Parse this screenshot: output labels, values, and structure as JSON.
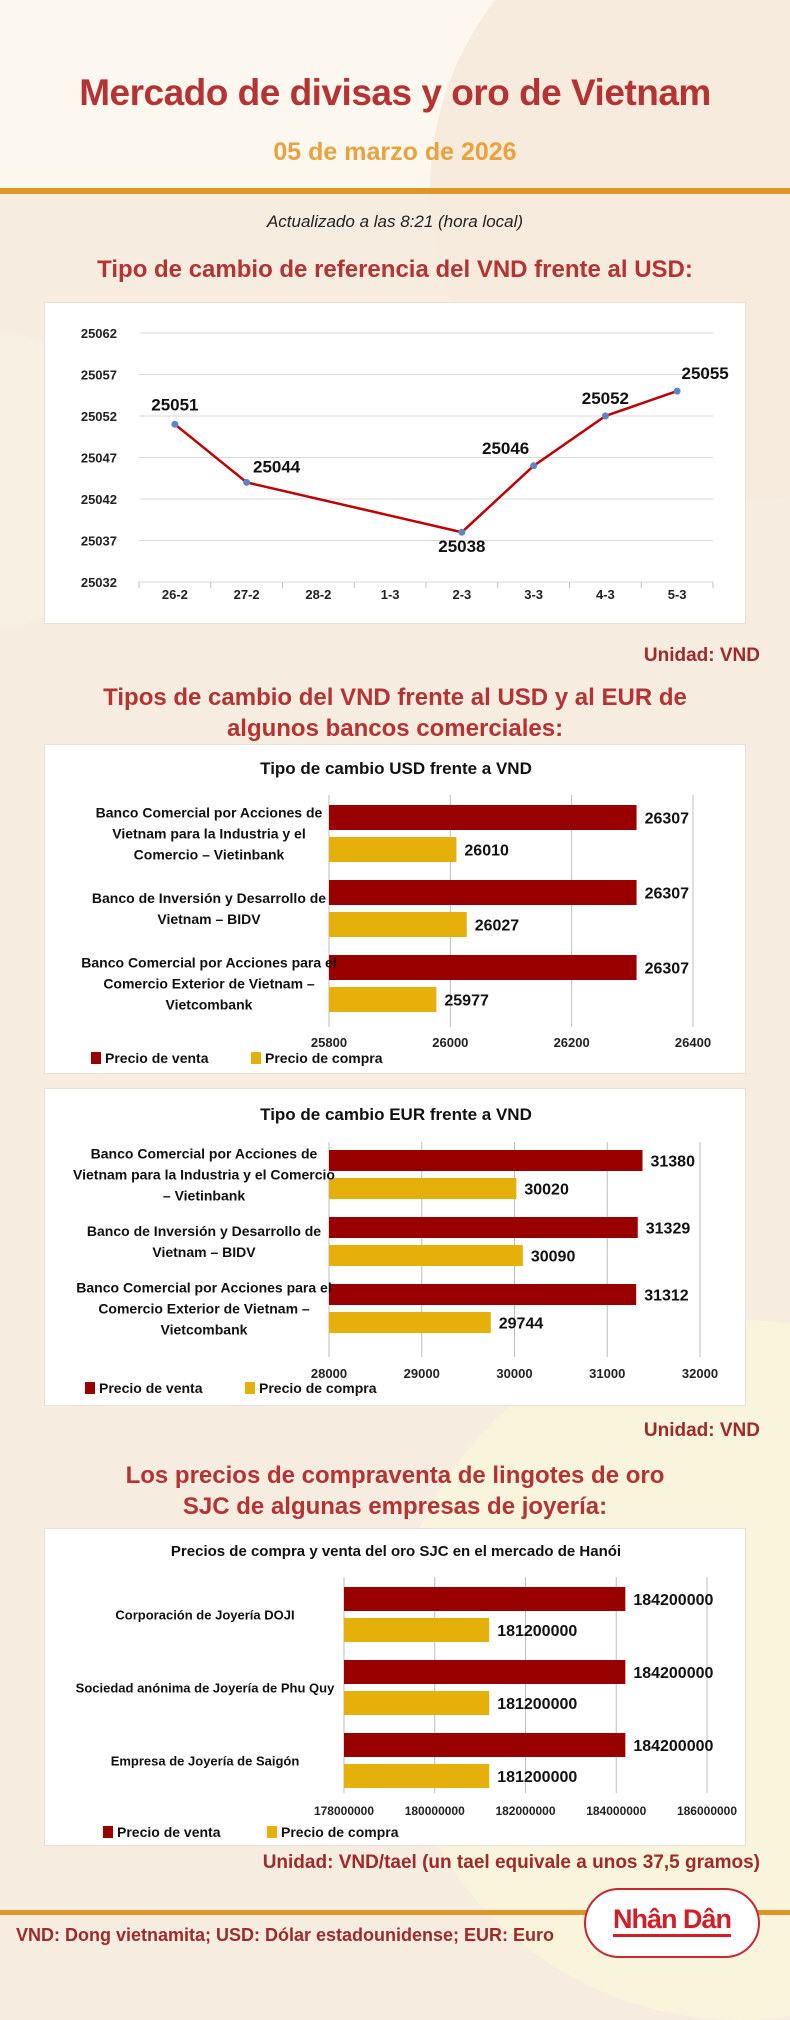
{
  "header": {
    "title": "Mercado de divisas y oro de Vietnam",
    "date": "05 de marzo de 2026",
    "updated": "Actualizado a las 8:21 (hora local)"
  },
  "sections": {
    "reference": {
      "heading": "Tipo de cambio de referencia del VND frente al USD:",
      "unit": "Unidad: VND"
    },
    "banks": {
      "heading_line1": "Tipos de cambio del VND frente al USD y al EUR de",
      "heading_line2": "algunos bancos comerciales:",
      "unit": "Unidad: VND"
    },
    "gold": {
      "heading_line1": "Los precios de compraventa de lingotes de oro",
      "heading_line2": "SJC de algunas empresas de joyería:",
      "unit": "Unidad: VND/tael (un tael equivale a unos 37,5 gramos)"
    }
  },
  "footer": {
    "legend": "VND: Dong vietnamita; USD: Dólar estadounidense; EUR: Euro",
    "logo": "Nhân Dân"
  },
  "colors": {
    "title_red": "#b53333",
    "date_orange": "#e8a23e",
    "rule_orange": "#e29527",
    "sell_bar": "#990000",
    "buy_bar": "#e6b00a",
    "line": "#c00000",
    "marker": "#5b86c4"
  },
  "legend": {
    "sell": "Precio de venta",
    "buy": "Precio de compra"
  },
  "chart_data": [
    {
      "type": "line",
      "title": "Tipo de cambio de referencia del VND frente al USD",
      "categories": [
        "26-2",
        "27-2",
        "28-2",
        "1-3",
        "2-3",
        "3-3",
        "4-3",
        "5-3"
      ],
      "points": [
        {
          "x": "26-2",
          "y": 25051
        },
        {
          "x": "27-2",
          "y": 25044
        },
        {
          "x": "2-3",
          "y": 25038
        },
        {
          "x": "3-3",
          "y": 25046
        },
        {
          "x": "4-3",
          "y": 25052
        },
        {
          "x": "5-3",
          "y": 25055
        }
      ],
      "yticks": [
        25032,
        25037,
        25042,
        25047,
        25052,
        25057,
        25062
      ],
      "ylim": [
        25032,
        25062
      ],
      "grid": true,
      "xlabel": "",
      "ylabel": ""
    },
    {
      "type": "bar",
      "orientation": "horizontal",
      "title": "Tipo de cambio USD frente a VND",
      "categories": [
        "Banco Comercial por Acciones de Vietnam para la Industria y el Comercio – Vietinbank",
        "Banco de Inversión y Desarrollo de Vietnam – BIDV",
        "Banco Comercial por Acciones para el Comercio Exterior de Vietnam – Vietcombank"
      ],
      "category_lines": [
        [
          "Banco Comercial por Acciones de",
          "Vietnam para la Industria y el",
          "Comercio – Vietinbank"
        ],
        [
          "Banco de Inversión y Desarrollo de",
          "Vietnam – BIDV"
        ],
        [
          "Banco Comercial por Acciones para el",
          "Comercio Exterior de Vietnam –",
          "Vietcombank"
        ]
      ],
      "series": [
        {
          "name": "Precio de venta",
          "values": [
            26307,
            26307,
            26307
          ]
        },
        {
          "name": "Precio de compra",
          "values": [
            26010,
            26027,
            25977
          ]
        }
      ],
      "xticks": [
        25800,
        26000,
        26200,
        26400
      ],
      "xlim": [
        25800,
        26400
      ],
      "legend_position": "bottom-left"
    },
    {
      "type": "bar",
      "orientation": "horizontal",
      "title": "Tipo de cambio EUR frente a VND",
      "categories": [
        "Banco Comercial por Acciones de Vietnam para la Industria y el Comercio – Vietinbank",
        "Banco de Inversión y Desarrollo de Vietnam – BIDV",
        "Banco Comercial por Acciones para el Comercio Exterior de Vietnam – Vietcombank"
      ],
      "category_lines": [
        [
          "Banco Comercial por Acciones de",
          "Vietnam para la Industria y el Comercio",
          "– Vietinbank"
        ],
        [
          "Banco de Inversión y Desarrollo de",
          "Vietnam – BIDV"
        ],
        [
          "Banco Comercial por Acciones para el",
          "Comercio Exterior de Vietnam –",
          "Vietcombank"
        ]
      ],
      "series": [
        {
          "name": "Precio de venta",
          "values": [
            31380,
            31329,
            31312
          ]
        },
        {
          "name": "Precio de compra",
          "values": [
            30020,
            30090,
            29744
          ]
        }
      ],
      "xticks": [
        28000,
        29000,
        30000,
        31000,
        32000
      ],
      "xlim": [
        28000,
        32000
      ],
      "legend_position": "bottom-left"
    },
    {
      "type": "bar",
      "orientation": "horizontal",
      "title": "Precios de compra y venta del oro SJC en el mercado de Hanói",
      "categories": [
        "Corporación de Joyería DOJI",
        "Sociedad anónima de Joyería de Phu Quy",
        "Empresa de Joyería de Saigón"
      ],
      "category_lines": [
        [
          "Corporación de Joyería DOJI"
        ],
        [
          "Sociedad anónima de Joyería de Phu Quy"
        ],
        [
          "Empresa de Joyería de Saigón"
        ]
      ],
      "series": [
        {
          "name": "Precio de venta",
          "values": [
            184200000,
            184200000,
            184200000
          ]
        },
        {
          "name": "Precio de compra",
          "values": [
            181200000,
            181200000,
            181200000
          ]
        }
      ],
      "xticks": [
        178000000,
        180000000,
        182000000,
        184000000,
        186000000
      ],
      "xlim": [
        178000000,
        186000000
      ],
      "legend_position": "bottom-left"
    }
  ]
}
